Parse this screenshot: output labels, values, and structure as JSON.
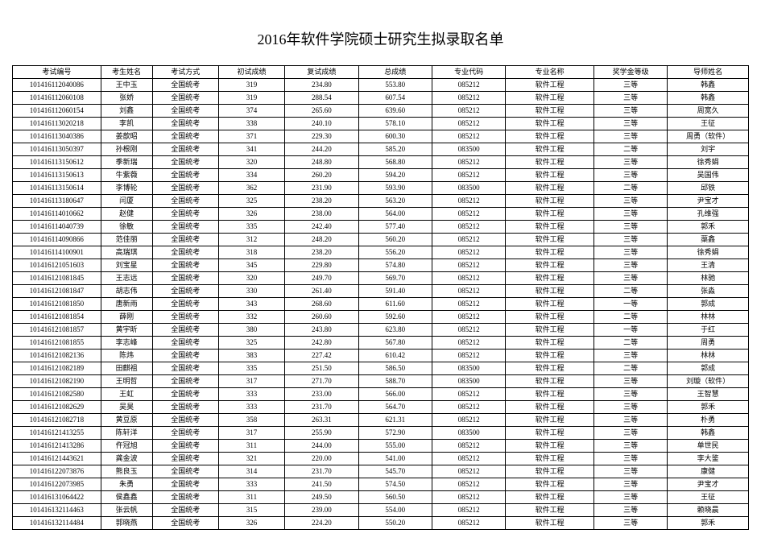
{
  "title": "2016年软件学院硕士研究生拟录取名单",
  "columns": [
    "考试编号",
    "考生姓名",
    "考试方式",
    "初试成绩",
    "复试成绩",
    "总成绩",
    "专业代码",
    "专业名称",
    "奖学金等级",
    "导师姓名"
  ],
  "rows": [
    [
      "101416112040086",
      "王中玉",
      "全国统考",
      "319",
      "234.80",
      "553.80",
      "085212",
      "软件工程",
      "三等",
      "韩鑫"
    ],
    [
      "101416112060108",
      "张娇",
      "全国统考",
      "319",
      "288.54",
      "607.54",
      "085212",
      "软件工程",
      "三等",
      "韩鑫"
    ],
    [
      "101416112060154",
      "刘鑫",
      "全国统考",
      "374",
      "265.60",
      "639.60",
      "085212",
      "软件工程",
      "三等",
      "周宽久"
    ],
    [
      "101416113020218",
      "李凯",
      "全国统考",
      "338",
      "240.10",
      "578.10",
      "085212",
      "软件工程",
      "三等",
      "王征"
    ],
    [
      "101416113040386",
      "姜歆昭",
      "全国统考",
      "371",
      "229.30",
      "600.30",
      "085212",
      "软件工程",
      "三等",
      "周勇（软件）"
    ],
    [
      "101416113050397",
      "孙根刚",
      "全国统考",
      "341",
      "244.20",
      "585.20",
      "083500",
      "软件工程",
      "二等",
      "刘宇"
    ],
    [
      "101416113150612",
      "季新瑞",
      "全国统考",
      "320",
      "248.80",
      "568.80",
      "085212",
      "软件工程",
      "三等",
      "徐秀娟"
    ],
    [
      "101416113150613",
      "牛紫薇",
      "全国统考",
      "334",
      "260.20",
      "594.20",
      "085212",
      "软件工程",
      "三等",
      "吴国伟"
    ],
    [
      "101416113150614",
      "李博轮",
      "全国统考",
      "362",
      "231.90",
      "593.90",
      "083500",
      "软件工程",
      "二等",
      "邱铁"
    ],
    [
      "101416113180647",
      "闫厦",
      "全国统考",
      "325",
      "238.20",
      "563.20",
      "085212",
      "软件工程",
      "三等",
      "尹宝才"
    ],
    [
      "101416114010662",
      "赵健",
      "全国统考",
      "326",
      "238.00",
      "564.00",
      "085212",
      "软件工程",
      "三等",
      "孔维强"
    ],
    [
      "101416114040739",
      "徐敏",
      "全国统考",
      "335",
      "242.40",
      "577.40",
      "085212",
      "软件工程",
      "三等",
      "郭禾"
    ],
    [
      "101416114090866",
      "范佳丽",
      "全国统考",
      "312",
      "248.20",
      "560.20",
      "085212",
      "软件工程",
      "三等",
      "蕖鑫"
    ],
    [
      "101416114100901",
      "高瑞琪",
      "全国统考",
      "318",
      "238.20",
      "556.20",
      "085212",
      "软件工程",
      "三等",
      "徐秀娟"
    ],
    [
      "101416121051603",
      "刘宝星",
      "全国统考",
      "345",
      "229.80",
      "574.80",
      "085212",
      "软件工程",
      "三等",
      "王清"
    ],
    [
      "101416121081845",
      "王志远",
      "全国统考",
      "320",
      "249.70",
      "569.70",
      "085212",
      "软件工程",
      "三等",
      "林驰"
    ],
    [
      "101416121081847",
      "胡志伟",
      "全国统考",
      "330",
      "261.40",
      "591.40",
      "085212",
      "软件工程",
      "二等",
      "张淼"
    ],
    [
      "101416121081850",
      "唐新雨",
      "全国统考",
      "343",
      "268.60",
      "611.60",
      "085212",
      "软件工程",
      "一等",
      "郭成"
    ],
    [
      "101416121081854",
      "薛刚",
      "全国统考",
      "332",
      "260.60",
      "592.60",
      "085212",
      "软件工程",
      "二等",
      "林林"
    ],
    [
      "101416121081857",
      "黄宇昕",
      "全国统考",
      "380",
      "243.80",
      "623.80",
      "085212",
      "软件工程",
      "一等",
      "于红"
    ],
    [
      "101416121081855",
      "李志峰",
      "全国统考",
      "325",
      "242.80",
      "567.80",
      "085212",
      "软件工程",
      "二等",
      "周勇"
    ],
    [
      "101416121082136",
      "陈炜",
      "全国统考",
      "383",
      "227.42",
      "610.42",
      "085212",
      "软件工程",
      "三等",
      "林林"
    ],
    [
      "101416121082189",
      "田麒祖",
      "全国统考",
      "335",
      "251.50",
      "586.50",
      "083500",
      "软件工程",
      "二等",
      "郭成"
    ],
    [
      "101416121082190",
      "王明哲",
      "全国统考",
      "317",
      "271.70",
      "588.70",
      "083500",
      "软件工程",
      "三等",
      "刘璇（软件）"
    ],
    [
      "101416121082580",
      "王虹",
      "全国统考",
      "333",
      "233.00",
      "566.00",
      "085212",
      "软件工程",
      "三等",
      "王智慧"
    ],
    [
      "101416121082629",
      "吴昊",
      "全国统考",
      "333",
      "231.70",
      "564.70",
      "085212",
      "软件工程",
      "三等",
      "郭禾"
    ],
    [
      "101416121082718",
      "黄豆原",
      "全国统考",
      "358",
      "263.31",
      "621.31",
      "085212",
      "软件工程",
      "三等",
      "朴勇"
    ],
    [
      "101416121413255",
      "陈轩洋",
      "全国统考",
      "317",
      "255.90",
      "572.90",
      "083500",
      "软件工程",
      "三等",
      "韩鑫"
    ],
    [
      "101416121413286",
      "仵冠旭",
      "全国统考",
      "311",
      "244.00",
      "555.00",
      "085212",
      "软件工程",
      "三等",
      "单世民"
    ],
    [
      "101416121443621",
      "龚金波",
      "全国统考",
      "321",
      "220.00",
      "541.00",
      "085212",
      "软件工程",
      "三等",
      "李大鉴"
    ],
    [
      "101416122073876",
      "熊良玉",
      "全国统考",
      "314",
      "231.70",
      "545.70",
      "085212",
      "软件工程",
      "三等",
      "康健"
    ],
    [
      "101416122073985",
      "朱勇",
      "全国统考",
      "333",
      "241.50",
      "574.50",
      "085212",
      "软件工程",
      "三等",
      "尹宝才"
    ],
    [
      "101416131064422",
      "侯鑫鑫",
      "全国统考",
      "311",
      "249.50",
      "560.50",
      "085212",
      "软件工程",
      "三等",
      "王征"
    ],
    [
      "101416132114463",
      "张云帆",
      "全国统考",
      "315",
      "239.00",
      "554.00",
      "085212",
      "软件工程",
      "三等",
      "赖晓晨"
    ],
    [
      "101416132114484",
      "郭晓燕",
      "全国统考",
      "326",
      "224.20",
      "550.20",
      "085212",
      "软件工程",
      "三等",
      "郭禾"
    ]
  ],
  "style": {
    "page_bg": "#ffffff",
    "border_color": "#000000",
    "title_fontsize": 18,
    "cell_fontsize": 9
  }
}
